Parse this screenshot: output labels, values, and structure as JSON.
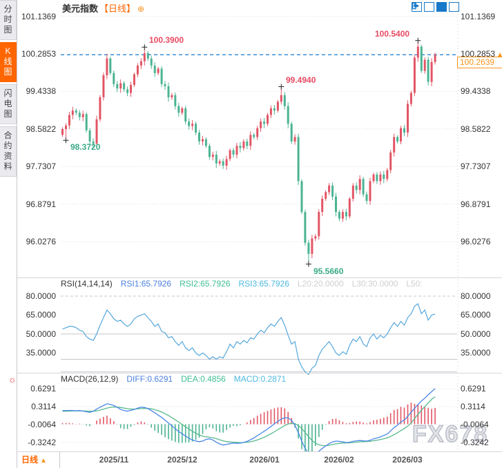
{
  "header": {
    "title": "美元指数",
    "period_tag": "【日线】",
    "expand_icon": "⊕"
  },
  "sidebar": {
    "tabs": [
      {
        "label": "分时图",
        "active": false
      },
      {
        "label": "K线图",
        "active": true
      },
      {
        "label": "闪电图",
        "active": false
      },
      {
        "label": "合约资料",
        "active": false
      }
    ]
  },
  "toolbar": {
    "icons": [
      "pan-icon",
      "axis-scale-icon",
      "axis-scale-active-icon",
      "exit-icon"
    ]
  },
  "price_axis_labels": [
    "101.1369",
    "100.2853",
    "99.4338",
    "98.5822",
    "97.7307",
    "96.8791",
    "96.0276"
  ],
  "marked_axis_value": "100.2853",
  "current_price": "100.2639",
  "rsi_header": {
    "name": "RSI(14,14,14)",
    "rsi1": "RSI1:65.7926",
    "rsi2": "RSI2:65.7926",
    "rsi3": "RSI3:65.7926",
    "l20": "L20:20.0000",
    "l30": "L30:30.0000",
    "l50": "L50:"
  },
  "rsi_axis_labels": [
    "80.0000",
    "65.0000",
    "50.0000",
    "35.0000"
  ],
  "macd_header": {
    "name": "MACD(26,12,9)",
    "diff": "DIFF:0.6291",
    "dea": "DEA:0.4856",
    "macd": "MACD:0.2871"
  },
  "macd_axis_labels": [
    "0.6291",
    "0.3114",
    "-0.0064",
    "-0.3242"
  ],
  "bottom_bar": {
    "period": "日线",
    "dates": [
      "2025/11",
      "2025/12",
      "2026/01",
      "2026/02",
      "2026/03"
    ]
  },
  "watermark": "FX678",
  "colors": {
    "up": "#e25565",
    "down": "#4bb392",
    "rsi_line": "#55a7dd",
    "diff_line": "#4a86e8",
    "dea_line": "#57b98c",
    "dashed_price": "#1a7fd4",
    "accent_orange": "#ff6600",
    "box_orange": "#f7941d"
  },
  "chart_data": {
    "type": "candlestick+rsi+macd",
    "title": "美元指数 日线",
    "main_axis_values": [
      101.1369,
      100.2853,
      99.4338,
      98.5822,
      97.7307,
      96.8791,
      96.0276
    ],
    "current_price_value": 100.2639,
    "first_open": 98.45,
    "closes": [
      98.58,
      98.66,
      98.9,
      99.0,
      98.95,
      98.85,
      98.92,
      98.55,
      98.3,
      98.25,
      98.8,
      99.3,
      99.8,
      100.18,
      99.85,
      99.6,
      99.5,
      99.62,
      99.48,
      99.4,
      99.58,
      99.82,
      100.02,
      100.12,
      100.3,
      100.18,
      100.02,
      99.85,
      99.95,
      99.6,
      99.55,
      99.3,
      99.35,
      99.1,
      98.95,
      99.05,
      98.75,
      98.65,
      98.7,
      98.5,
      98.3,
      98.35,
      98.2,
      97.95,
      98.0,
      97.8,
      97.85,
      97.75,
      97.9,
      98.1,
      98.0,
      98.2,
      98.15,
      98.3,
      98.2,
      98.45,
      98.4,
      98.6,
      98.75,
      98.7,
      98.9,
      99.05,
      99.0,
      99.2,
      99.35,
      99.1,
      98.7,
      98.3,
      98.4,
      97.4,
      96.7,
      96.0,
      95.75,
      96.1,
      96.15,
      96.7,
      97.0,
      97.15,
      97.3,
      97.05,
      96.7,
      96.55,
      96.7,
      96.6,
      97.0,
      97.3,
      97.2,
      97.45,
      97.1,
      96.95,
      97.4,
      97.55,
      97.4,
      97.55,
      97.45,
      97.65,
      98.05,
      98.4,
      98.3,
      98.6,
      98.5,
      99.15,
      99.4,
      100.2,
      100.45,
      99.9,
      100.15,
      99.65,
      100.1,
      100.2639
    ],
    "wick_overrides": {
      "1": {
        "low": 98.372
      },
      "13": {
        "high": 100.2853
      },
      "24": {
        "high": 100.39
      },
      "64": {
        "high": 99.494
      },
      "72": {
        "low": 95.566
      },
      "104": {
        "high": 100.54
      }
    },
    "annotations": [
      {
        "index": 24,
        "price": 100.39,
        "label": "100.3900",
        "side": "high",
        "color": "red",
        "align": "right"
      },
      {
        "index": 64,
        "price": 99.494,
        "label": "99.4940",
        "side": "high",
        "color": "red",
        "align": "right"
      },
      {
        "index": 104,
        "price": 100.54,
        "label": "100.5400",
        "side": "high",
        "color": "red",
        "align": "left"
      },
      {
        "index": 1,
        "price": 98.372,
        "label": "98.3720",
        "side": "low",
        "color": "green",
        "align": "right"
      },
      {
        "index": 72,
        "price": 95.566,
        "label": "95.5660",
        "side": "low",
        "color": "green",
        "align": "right"
      }
    ],
    "month_ticks": [
      {
        "index": 15,
        "label": "2025/11"
      },
      {
        "index": 35,
        "label": "2025/12"
      },
      {
        "index": 59,
        "label": "2026/01"
      },
      {
        "index": 81,
        "label": "2026/02"
      },
      {
        "index": 101,
        "label": "2026/03"
      }
    ],
    "rsi": {
      "axis_values": [
        80,
        65,
        50,
        35
      ],
      "guides": [
        {
          "v": 80,
          "style": "dashed"
        },
        {
          "v": 50,
          "style": "solid"
        },
        {
          "v": 30,
          "style": "solid"
        },
        {
          "v": 20,
          "style": "solid"
        }
      ],
      "values": [
        54,
        55,
        56,
        56,
        55,
        53,
        52,
        48,
        46,
        45,
        50,
        57,
        63,
        69,
        66,
        62,
        60,
        61,
        58,
        56,
        58,
        62,
        64,
        65,
        66,
        63,
        60,
        56,
        58,
        52,
        51,
        47,
        48,
        44,
        41,
        44,
        39,
        37,
        39,
        35,
        33,
        35,
        33,
        30,
        32,
        30,
        32,
        31,
        36,
        42,
        39,
        44,
        42,
        45,
        43,
        47,
        46,
        50,
        53,
        51,
        55,
        58,
        56,
        60,
        63,
        57,
        49,
        42,
        44,
        30,
        24,
        20,
        18,
        23,
        25,
        33,
        38,
        41,
        44,
        40,
        35,
        33,
        36,
        34,
        41,
        46,
        44,
        48,
        42,
        40,
        47,
        50,
        46,
        49,
        47,
        50,
        55,
        59,
        56,
        60,
        57,
        63,
        66,
        72,
        74,
        66,
        69,
        61,
        65,
        65.7926
      ]
    },
    "macd": {
      "axis_values": [
        0.6291,
        0.3114,
        -0.0064,
        -0.3242
      ],
      "diff": [
        0.24,
        0.24,
        0.243,
        0.24,
        0.236,
        0.24,
        0.232,
        0.22,
        0.21,
        0.228,
        0.268,
        0.3,
        0.33,
        0.36,
        0.35,
        0.33,
        0.3,
        0.26,
        0.24,
        0.23,
        0.245,
        0.26,
        0.285,
        0.3,
        0.295,
        0.275,
        0.24,
        0.2,
        0.16,
        0.12,
        0.07,
        0.02,
        -0.03,
        -0.08,
        -0.13,
        -0.17,
        -0.21,
        -0.25,
        -0.28,
        -0.3,
        -0.31,
        -0.3,
        -0.27,
        -0.26,
        -0.28,
        -0.32,
        -0.35,
        -0.37,
        -0.36,
        -0.345,
        -0.335,
        -0.34,
        -0.335,
        -0.325,
        -0.305,
        -0.275,
        -0.245,
        -0.205,
        -0.165,
        -0.125,
        -0.085,
        -0.04,
        0.005,
        0.05,
        0.09,
        0.115,
        0.11,
        0.07,
        -0.02,
        -0.15,
        -0.3,
        -0.43,
        -0.52,
        -0.555,
        -0.53,
        -0.48,
        -0.43,
        -0.385,
        -0.345,
        -0.315,
        -0.3,
        -0.305,
        -0.315,
        -0.325,
        -0.32,
        -0.305,
        -0.295,
        -0.29,
        -0.295,
        -0.3,
        -0.285,
        -0.26,
        -0.245,
        -0.225,
        -0.2,
        -0.175,
        -0.12,
        -0.06,
        -0.02,
        0.04,
        0.07,
        0.14,
        0.21,
        0.28,
        0.35,
        0.41,
        0.46,
        0.52,
        0.575,
        0.6291
      ],
      "dea": [
        0.23,
        0.23,
        0.232,
        0.233,
        0.234,
        0.235,
        0.234,
        0.232,
        0.228,
        0.228,
        0.236,
        0.25,
        0.266,
        0.285,
        0.298,
        0.304,
        0.303,
        0.295,
        0.284,
        0.273,
        0.268,
        0.266,
        0.27,
        0.276,
        0.28,
        0.279,
        0.271,
        0.257,
        0.238,
        0.215,
        0.186,
        0.153,
        0.116,
        0.077,
        0.036,
        -0.005,
        -0.046,
        -0.087,
        -0.126,
        -0.161,
        -0.191,
        -0.213,
        -0.224,
        -0.231,
        -0.241,
        -0.257,
        -0.276,
        -0.295,
        -0.308,
        -0.315,
        -0.319,
        -0.323,
        -0.325,
        -0.325,
        -0.321,
        -0.312,
        -0.299,
        -0.28,
        -0.257,
        -0.231,
        -0.202,
        -0.17,
        -0.135,
        -0.098,
        -0.06,
        -0.025,
        0.002,
        0.016,
        0.009,
        -0.023,
        -0.078,
        -0.148,
        -0.222,
        -0.289,
        -0.337,
        -0.366,
        -0.379,
        -0.38,
        -0.373,
        -0.361,
        -0.349,
        -0.34,
        -0.335,
        -0.333,
        -0.33,
        -0.325,
        -0.319,
        -0.313,
        -0.309,
        -0.307,
        -0.303,
        -0.294,
        -0.284,
        -0.272,
        -0.258,
        -0.241,
        -0.217,
        -0.186,
        -0.153,
        -0.114,
        -0.077,
        -0.034,
        0.02,
        0.1,
        0.175,
        0.245,
        0.31,
        0.375,
        0.44,
        0.4856
      ],
      "histogram_rule": "2*(diff-dea)"
    }
  }
}
